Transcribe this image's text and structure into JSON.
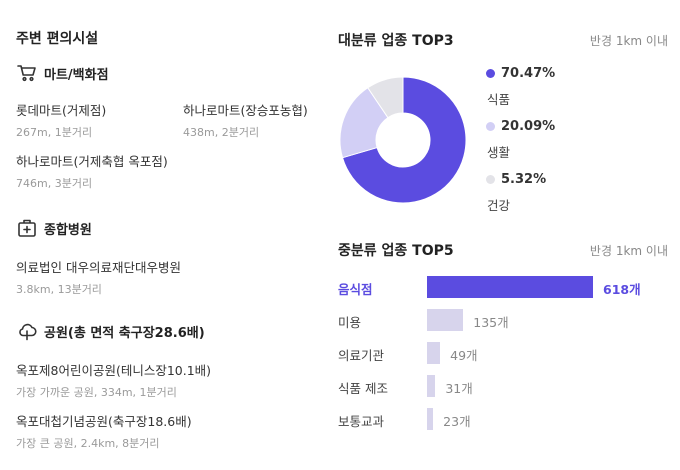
{
  "left": {
    "title": "주변 편의시설",
    "categories": [
      {
        "icon": "cart-icon",
        "label": "마트/백화점",
        "places": [
          {
            "name": "롯데마트(거제점)",
            "meta": "267m, 1분거리"
          },
          {
            "name": "하나로마트(장승포농협)",
            "meta": "438m, 2분거리"
          },
          {
            "name": "하나로마트(거제축협 옥포점)",
            "meta": "746m, 3분거리"
          }
        ]
      },
      {
        "icon": "hospital-icon",
        "label": "종합병원",
        "places": [
          {
            "name": "의료법인 대우의료재단대우병원",
            "meta": "3.8km, 13분거리"
          }
        ]
      },
      {
        "icon": "tree-icon",
        "label": "공원(총 면적 축구장28.6배)",
        "places": [
          {
            "name": "옥포제8어린이공원(테니스장10.1배)",
            "meta": "가장 가까운 공원, 334m, 1분거리"
          },
          {
            "name": "옥포대첩기념공원(축구장18.6배)",
            "meta": "가장 큰 공원, 2.4km, 8분거리"
          }
        ]
      }
    ]
  },
  "right": {
    "top3": {
      "title": "대분류 업종 TOP3",
      "note": "반경 1km 이내"
    },
    "top5": {
      "title": "중분류 업종 TOP5",
      "note": "반경 1km 이내"
    }
  },
  "chart_data": [
    {
      "type": "pie",
      "title": "대분류 업종 TOP3",
      "donut": true,
      "slices": [
        {
          "label": "식품",
          "value": 70.47,
          "display": "70.47%",
          "color": "#5b4ce0"
        },
        {
          "label": "생활",
          "value": 20.09,
          "display": "20.09%",
          "color": "#d2cff5"
        },
        {
          "label": "건강",
          "value": 5.32,
          "display": "5.32%",
          "color": "#e3e3e8"
        }
      ]
    },
    {
      "type": "bar",
      "orientation": "horizontal",
      "title": "중분류 업종 TOP5",
      "categories": [
        "음식점",
        "미용",
        "의료기관",
        "식품 제조",
        "보통교과"
      ],
      "values": [
        618,
        135,
        49,
        31,
        23
      ],
      "value_labels": [
        "618개",
        "135개",
        "49개",
        "31개",
        "23개"
      ],
      "highlight_index": 0,
      "colors": {
        "highlight": "#5b4ce0",
        "default": "#d7d4ec"
      }
    }
  ]
}
